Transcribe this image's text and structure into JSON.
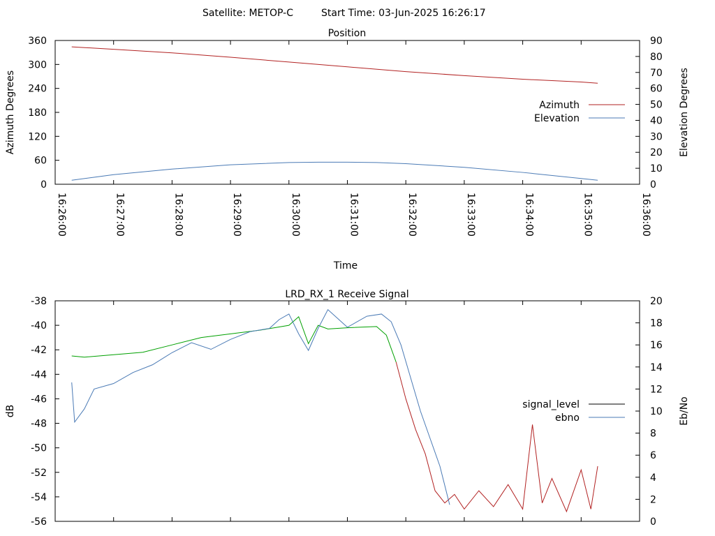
{
  "header": {
    "satellite": "Satellite: METOP-C",
    "start_time": "Start Time: 03-Jun-2025 16:26:17"
  },
  "chart_data": [
    {
      "type": "line",
      "title": "Position",
      "xlabel": "Time",
      "ylabel": "Azimuth Degrees",
      "y2label": "Elevation Degrees",
      "xlim": [
        "16:26:00",
        "16:36:00"
      ],
      "xticks": [
        "16:26:00",
        "16:27:00",
        "16:28:00",
        "16:29:00",
        "16:30:00",
        "16:31:00",
        "16:32:00",
        "16:33:00",
        "16:34:00",
        "16:35:00",
        "16:36:00"
      ],
      "ylim": [
        0,
        360
      ],
      "yticks": [
        "0",
        "60",
        "120",
        "180",
        "240",
        "300",
        "360"
      ],
      "y2lim": [
        0,
        90
      ],
      "y2ticks": [
        "0",
        "10",
        "20",
        "30",
        "40",
        "50",
        "60",
        "70",
        "80",
        "90"
      ],
      "grid": false,
      "legend": "right",
      "series": [
        {
          "name": "Azimuth",
          "axis": "left",
          "color": "#b22222",
          "x": [
            "16:26:17",
            "16:27:00",
            "16:28:00",
            "16:29:00",
            "16:30:00",
            "16:31:00",
            "16:32:00",
            "16:33:00",
            "16:34:00",
            "16:35:00",
            "16:35:17"
          ],
          "values": [
            344,
            338,
            329,
            318,
            306,
            294,
            282,
            272,
            263,
            256,
            253
          ]
        },
        {
          "name": "Elevation",
          "axis": "right",
          "color": "#4a7ab5",
          "x": [
            "16:26:17",
            "16:27:00",
            "16:28:00",
            "16:29:00",
            "16:30:00",
            "16:30:30",
            "16:31:00",
            "16:31:30",
            "16:32:00",
            "16:33:00",
            "16:34:00",
            "16:35:00",
            "16:35:17"
          ],
          "values": [
            2.5,
            6,
            9.5,
            12.2,
            13.6,
            13.8,
            13.8,
            13.6,
            12.9,
            10.6,
            7.4,
            3.6,
            2.5
          ]
        }
      ]
    },
    {
      "type": "line",
      "title": "LRD_RX_1 Receive Signal",
      "ylabel": "dB",
      "y2label": "Eb/No",
      "xlim": [
        "16:26:00",
        "16:36:00"
      ],
      "ylim": [
        -56,
        -38
      ],
      "yticks": [
        "-38",
        "-40",
        "-42",
        "-44",
        "-46",
        "-48",
        "-50",
        "-52",
        "-54",
        "-56"
      ],
      "y2lim": [
        0,
        20
      ],
      "y2ticks": [
        "0",
        "2",
        "4",
        "6",
        "8",
        "10",
        "12",
        "14",
        "16",
        "18",
        "20"
      ],
      "grid": false,
      "legend": "right",
      "series": [
        {
          "name": "signal_level",
          "axis": "left",
          "color": "#00a000",
          "color_below_lock": "#b22222",
          "lock_end": "16:31:54",
          "x": [
            "16:26:17",
            "16:26:30",
            "16:27:00",
            "16:27:30",
            "16:28:00",
            "16:28:30",
            "16:29:00",
            "16:29:30",
            "16:30:00",
            "16:30:10",
            "16:30:20",
            "16:30:30",
            "16:30:40",
            "16:31:00",
            "16:31:30",
            "16:31:40",
            "16:31:50",
            "16:32:00",
            "16:32:10",
            "16:32:20",
            "16:32:30",
            "16:32:40",
            "16:32:50",
            "16:33:00",
            "16:33:15",
            "16:33:30",
            "16:33:45",
            "16:34:00",
            "16:34:10",
            "16:34:20",
            "16:34:30",
            "16:34:45",
            "16:35:00",
            "16:35:10",
            "16:35:17"
          ],
          "values": [
            -42.5,
            -42.6,
            -42.4,
            -42.2,
            -41.6,
            -41.0,
            -40.7,
            -40.4,
            -40.0,
            -39.3,
            -41.5,
            -40.0,
            -40.3,
            -40.2,
            -40.1,
            -40.8,
            -43.0,
            -46.0,
            -48.5,
            -50.5,
            -53.5,
            -54.5,
            -53.8,
            -55.0,
            -53.5,
            -54.8,
            -53.0,
            -55.0,
            -48.1,
            -54.5,
            -52.5,
            -55.2,
            -51.8,
            -55.0,
            -51.5
          ]
        },
        {
          "name": "ebno",
          "axis": "right",
          "color": "#4a7ab5",
          "x": [
            "16:26:17",
            "16:26:20",
            "16:26:30",
            "16:26:40",
            "16:27:00",
            "16:27:20",
            "16:27:40",
            "16:28:00",
            "16:28:20",
            "16:28:40",
            "16:29:00",
            "16:29:20",
            "16:29:40",
            "16:29:50",
            "16:30:00",
            "16:30:10",
            "16:30:20",
            "16:30:30",
            "16:30:40",
            "16:30:50",
            "16:31:00",
            "16:31:20",
            "16:31:35",
            "16:31:45",
            "16:31:55",
            "16:32:05",
            "16:32:15",
            "16:32:25",
            "16:32:35",
            "16:32:45"
          ],
          "values": [
            12.6,
            9,
            10.2,
            12,
            12.5,
            13.5,
            14.2,
            15.3,
            16.2,
            15.6,
            16.5,
            17.2,
            17.5,
            18.3,
            18.8,
            17,
            15.5,
            17.5,
            19.2,
            18.4,
            17.6,
            18.6,
            18.8,
            18.1,
            16.0,
            13.0,
            10.0,
            7.5,
            5.0,
            1.5
          ]
        }
      ]
    }
  ]
}
